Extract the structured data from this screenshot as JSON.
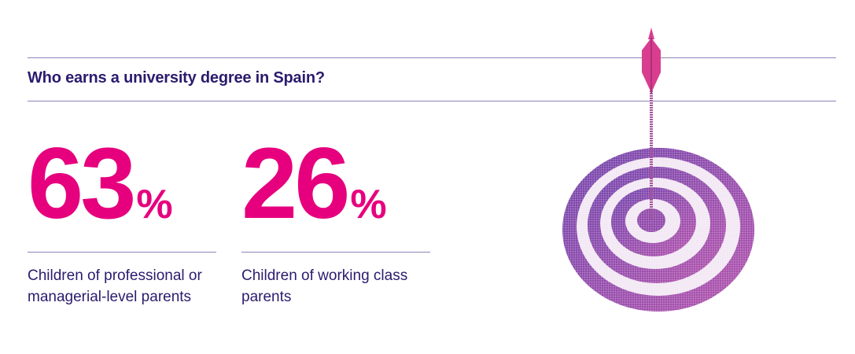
{
  "header": {
    "title": "Who earns a university degree in Spain?"
  },
  "stats": [
    {
      "value": 63,
      "unit": "%",
      "label": "Children of professional or managerial-level parents"
    },
    {
      "value": 26,
      "unit": "%",
      "label": "Children of working class parents"
    }
  ]
}
